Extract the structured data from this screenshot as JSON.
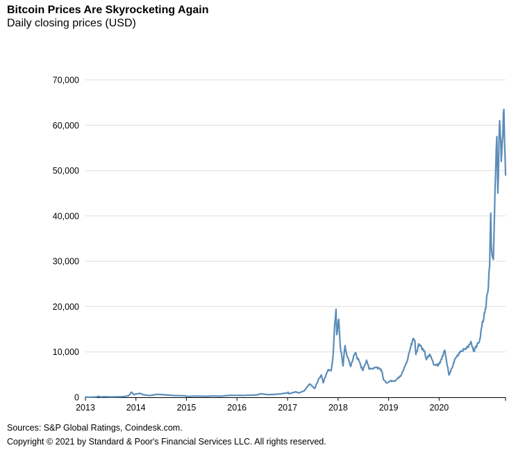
{
  "chart_data": {
    "type": "line",
    "title": "Bitcoin Prices Are Skyrocketing Again",
    "subtitle": "Daily closing prices (USD)",
    "xlabel": "",
    "ylabel": "",
    "x_tick_labels": [
      "2013",
      "2014",
      "2015",
      "2016",
      "2017",
      "2018",
      "2019",
      "2020"
    ],
    "y_tick_labels": [
      "0",
      "10,000",
      "20,000",
      "30,000",
      "40,000",
      "50,000",
      "60,000",
      "70,000"
    ],
    "ylim": [
      0,
      70000
    ],
    "xlim": [
      "2013-01-01",
      "2021-04-25"
    ],
    "grid": "horizontal",
    "legend": "none",
    "line_color": "#5b8db8",
    "series": [
      {
        "values": [
          [
            "2013-01-01",
            13
          ],
          [
            "2013-02-15",
            28
          ],
          [
            "2013-03-20",
            70
          ],
          [
            "2013-04-10",
            230
          ],
          [
            "2013-04-16",
            70
          ],
          [
            "2013-05-15",
            120
          ],
          [
            "2013-07-05",
            70
          ],
          [
            "2013-08-15",
            100
          ],
          [
            "2013-10-01",
            130
          ],
          [
            "2013-11-10",
            350
          ],
          [
            "2013-11-30",
            1130
          ],
          [
            "2013-12-18",
            550
          ],
          [
            "2013-12-31",
            750
          ],
          [
            "2014-01-31",
            860
          ],
          [
            "2014-02-25",
            550
          ],
          [
            "2014-04-10",
            380
          ],
          [
            "2014-06-05",
            650
          ],
          [
            "2014-08-15",
            500
          ],
          [
            "2014-10-01",
            380
          ],
          [
            "2014-12-15",
            330
          ],
          [
            "2015-01-14",
            180
          ],
          [
            "2015-03-01",
            260
          ],
          [
            "2015-06-01",
            225
          ],
          [
            "2015-07-15",
            285
          ],
          [
            "2015-09-01",
            230
          ],
          [
            "2015-11-04",
            410
          ],
          [
            "2015-12-31",
            430
          ],
          [
            "2016-02-15",
            400
          ],
          [
            "2016-05-31",
            530
          ],
          [
            "2016-06-17",
            770
          ],
          [
            "2016-08-15",
            570
          ],
          [
            "2016-10-31",
            700
          ],
          [
            "2016-12-31",
            960
          ],
          [
            "2017-01-05",
            1130
          ],
          [
            "2017-01-11",
            780
          ],
          [
            "2017-03-01",
            1200
          ],
          [
            "2017-03-24",
            950
          ],
          [
            "2017-05-01",
            1420
          ],
          [
            "2017-05-25",
            2400
          ],
          [
            "2017-06-11",
            2950
          ],
          [
            "2017-07-16",
            1930
          ],
          [
            "2017-08-15",
            4100
          ],
          [
            "2017-09-02",
            4900
          ],
          [
            "2017-09-15",
            3200
          ],
          [
            "2017-10-20",
            6000
          ],
          [
            "2017-11-12",
            5850
          ],
          [
            "2017-11-26",
            9300
          ],
          [
            "2017-12-07",
            16000
          ],
          [
            "2017-12-17",
            19400
          ],
          [
            "2017-12-22",
            13800
          ],
          [
            "2018-01-06",
            17200
          ],
          [
            "2018-01-17",
            11100
          ],
          [
            "2018-02-06",
            6900
          ],
          [
            "2018-02-20",
            11400
          ],
          [
            "2018-03-10",
            8800
          ],
          [
            "2018-04-01",
            6800
          ],
          [
            "2018-05-05",
            9800
          ],
          [
            "2018-06-29",
            5900
          ],
          [
            "2018-07-25",
            8200
          ],
          [
            "2018-08-14",
            6200
          ],
          [
            "2018-09-15",
            6500
          ],
          [
            "2018-10-31",
            6350
          ],
          [
            "2018-11-15",
            5600
          ],
          [
            "2018-11-25",
            3900
          ],
          [
            "2018-12-15",
            3200
          ],
          [
            "2019-01-15",
            3600
          ],
          [
            "2019-02-15",
            3600
          ],
          [
            "2019-04-02",
            4900
          ],
          [
            "2019-05-15",
            8000
          ],
          [
            "2019-06-26",
            12900
          ],
          [
            "2019-07-10",
            12500
          ],
          [
            "2019-07-17",
            9400
          ],
          [
            "2019-08-06",
            11800
          ],
          [
            "2019-09-15",
            10300
          ],
          [
            "2019-09-30",
            8300
          ],
          [
            "2019-10-26",
            9500
          ],
          [
            "2019-11-25",
            7100
          ],
          [
            "2019-12-31",
            7200
          ],
          [
            "2020-02-12",
            10300
          ],
          [
            "2020-03-12",
            4900
          ],
          [
            "2020-04-30",
            8700
          ],
          [
            "2020-06-01",
            10100
          ],
          [
            "2020-07-27",
            11000
          ],
          [
            "2020-08-17",
            12300
          ],
          [
            "2020-09-08",
            10100
          ],
          [
            "2020-10-21",
            12800
          ],
          [
            "2020-11-05",
            15600
          ],
          [
            "2020-11-30",
            19500
          ],
          [
            "2020-12-17",
            23000
          ],
          [
            "2020-12-31",
            29000
          ],
          [
            "2021-01-08",
            40600
          ],
          [
            "2021-01-12",
            33500
          ],
          [
            "2021-01-27",
            30400
          ],
          [
            "2021-02-08",
            46000
          ],
          [
            "2021-02-21",
            57500
          ],
          [
            "2021-02-28",
            45000
          ],
          [
            "2021-03-13",
            61000
          ],
          [
            "2021-03-25",
            52000
          ],
          [
            "2021-04-13",
            63500
          ],
          [
            "2021-04-18",
            56000
          ],
          [
            "2021-04-25",
            49000
          ]
        ]
      }
    ]
  },
  "footer": {
    "source": "Sources: S&P Global Ratings, Coindesk.com.",
    "copyright": "Copyright © 2021 by Standard & Poor's Financial Services LLC. All rights reserved."
  }
}
